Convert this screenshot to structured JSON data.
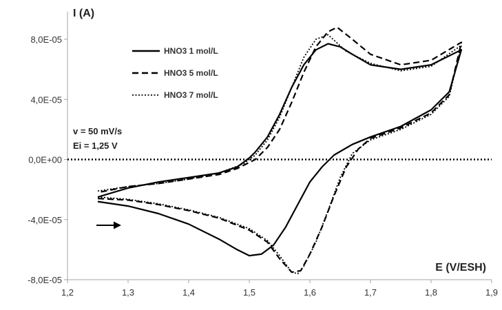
{
  "chart_data": {
    "type": "line",
    "title": "",
    "ylabel": "I (A)",
    "xlabel": "E (V/ESH)",
    "xlim": [
      1.2,
      1.9
    ],
    "ylim": [
      -8e-05,
      8e-05
    ],
    "x_ticks": [
      "1,2",
      "1,3",
      "1,4",
      "1,5",
      "1,6",
      "1,7",
      "1,8",
      "1,9"
    ],
    "y_ticks": [
      "8,0E-05",
      "4,0E-05",
      "0,0E+00",
      "-4,0E-05",
      "-8,0E-05"
    ],
    "legend_position": "top-left",
    "grid": false,
    "annotations": [
      "v = 50 mV/s",
      "Ei = 1,25 V"
    ],
    "arrow": "scan-direction-right",
    "series": [
      {
        "name": "HNO3 1 mol/L",
        "style": "solid",
        "color": "#000000",
        "points": [
          [
            1.25,
            -2.8e-05
          ],
          [
            1.3,
            -3.1e-05
          ],
          [
            1.35,
            -3.6e-05
          ],
          [
            1.4,
            -4.3e-05
          ],
          [
            1.45,
            -5.3e-05
          ],
          [
            1.48,
            -6e-05
          ],
          [
            1.5,
            -6.4e-05
          ],
          [
            1.52,
            -6.3e-05
          ],
          [
            1.54,
            -5.7e-05
          ],
          [
            1.56,
            -4.5e-05
          ],
          [
            1.58,
            -3e-05
          ],
          [
            1.6,
            -1.5e-05
          ],
          [
            1.62,
            -5e-06
          ],
          [
            1.64,
            3e-06
          ],
          [
            1.67,
            1e-05
          ],
          [
            1.7,
            1.5e-05
          ],
          [
            1.75,
            2.2e-05
          ],
          [
            1.8,
            3.3e-05
          ],
          [
            1.83,
            4.5e-05
          ],
          [
            1.85,
            7.3e-05
          ],
          [
            1.8,
            6.3e-05
          ],
          [
            1.75,
            6e-05
          ],
          [
            1.7,
            6.3e-05
          ],
          [
            1.67,
            7e-05
          ],
          [
            1.65,
            7.5e-05
          ],
          [
            1.63,
            7.7e-05
          ],
          [
            1.61,
            7.3e-05
          ],
          [
            1.59,
            6.3e-05
          ],
          [
            1.57,
            4.8e-05
          ],
          [
            1.55,
            3e-05
          ],
          [
            1.53,
            1.5e-05
          ],
          [
            1.51,
            5e-06
          ],
          [
            1.5,
            1e-06
          ],
          [
            1.48,
            -5e-06
          ],
          [
            1.45,
            -9e-06
          ],
          [
            1.4,
            -1.2e-05
          ],
          [
            1.35,
            -1.5e-05
          ],
          [
            1.3,
            -1.9e-05
          ],
          [
            1.25,
            -2.5e-05
          ]
        ]
      },
      {
        "name": "HNO3 5 mol/L",
        "style": "dashed",
        "color": "#000000",
        "points": [
          [
            1.25,
            -2.6e-05
          ],
          [
            1.3,
            -2.7e-05
          ],
          [
            1.35,
            -3e-05
          ],
          [
            1.4,
            -3.4e-05
          ],
          [
            1.45,
            -3.9e-05
          ],
          [
            1.5,
            -4.7e-05
          ],
          [
            1.53,
            -5.5e-05
          ],
          [
            1.55,
            -6.6e-05
          ],
          [
            1.57,
            -7.5e-05
          ],
          [
            1.585,
            -7.4e-05
          ],
          [
            1.6,
            -6.3e-05
          ],
          [
            1.62,
            -4.5e-05
          ],
          [
            1.64,
            -2.4e-05
          ],
          [
            1.66,
            -5e-06
          ],
          [
            1.68,
            7e-06
          ],
          [
            1.7,
            1.4e-05
          ],
          [
            1.75,
            2.1e-05
          ],
          [
            1.8,
            3.1e-05
          ],
          [
            1.83,
            4.3e-05
          ],
          [
            1.85,
            7.8e-05
          ],
          [
            1.8,
            6.6e-05
          ],
          [
            1.75,
            6.3e-05
          ],
          [
            1.7,
            7e-05
          ],
          [
            1.67,
            8e-05
          ],
          [
            1.645,
            8.8e-05
          ],
          [
            1.63,
            8.5e-05
          ],
          [
            1.61,
            7.5e-05
          ],
          [
            1.59,
            5.8e-05
          ],
          [
            1.57,
            3.8e-05
          ],
          [
            1.55,
            2e-05
          ],
          [
            1.53,
            8e-06
          ],
          [
            1.51,
            0.0
          ],
          [
            1.48,
            -6e-06
          ],
          [
            1.45,
            -1e-05
          ],
          [
            1.4,
            -1.3e-05
          ],
          [
            1.35,
            -1.6e-05
          ],
          [
            1.3,
            -1.8e-05
          ],
          [
            1.25,
            -2.2e-05
          ]
        ]
      },
      {
        "name": "HNO3 7 mol/L",
        "style": "dotted",
        "color": "#000000",
        "points": [
          [
            1.25,
            -2.5e-05
          ],
          [
            1.3,
            -2.65e-05
          ],
          [
            1.35,
            -2.95e-05
          ],
          [
            1.4,
            -3.35e-05
          ],
          [
            1.45,
            -3.85e-05
          ],
          [
            1.5,
            -4.6e-05
          ],
          [
            1.53,
            -5.4e-05
          ],
          [
            1.55,
            -6.4e-05
          ],
          [
            1.57,
            -7.5e-05
          ],
          [
            1.58,
            -7.6e-05
          ],
          [
            1.59,
            -7.1e-05
          ],
          [
            1.61,
            -5.5e-05
          ],
          [
            1.63,
            -3.4e-05
          ],
          [
            1.65,
            -1.2e-05
          ],
          [
            1.67,
            4e-06
          ],
          [
            1.7,
            1.3e-05
          ],
          [
            1.75,
            2e-05
          ],
          [
            1.8,
            3e-05
          ],
          [
            1.83,
            4.2e-05
          ],
          [
            1.85,
            7.6e-05
          ],
          [
            1.8,
            6.2e-05
          ],
          [
            1.75,
            5.9e-05
          ],
          [
            1.7,
            6.4e-05
          ],
          [
            1.66,
            7.2e-05
          ],
          [
            1.63,
            8.3e-05
          ],
          [
            1.61,
            8e-05
          ],
          [
            1.59,
            6.8e-05
          ],
          [
            1.57,
            4.8e-05
          ],
          [
            1.55,
            2.8e-05
          ],
          [
            1.53,
            1.3e-05
          ],
          [
            1.51,
            3e-06
          ],
          [
            1.49,
            -3e-06
          ],
          [
            1.45,
            -9e-06
          ],
          [
            1.4,
            -1.3e-05
          ],
          [
            1.35,
            -1.6e-05
          ],
          [
            1.3,
            -1.8e-05
          ],
          [
            1.25,
            -2.1e-05
          ]
        ]
      }
    ]
  }
}
